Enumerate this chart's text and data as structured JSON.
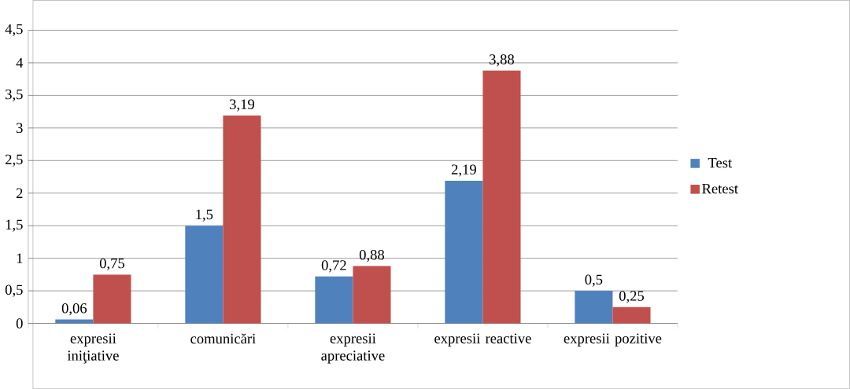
{
  "chart_data": {
    "type": "bar",
    "categories": [
      "expresii iniţiative",
      "comunicări",
      "expresii apreciative",
      "expresii reactive",
      "expresii pozitive"
    ],
    "series": [
      {
        "name": "Test",
        "color": "#4f81bd",
        "values": [
          0.06,
          1.5,
          0.72,
          2.19,
          0.5
        ],
        "value_labels": [
          "0,06",
          "1,5",
          "0,72",
          "2,19",
          "0,5"
        ]
      },
      {
        "name": "Retest",
        "color": "#c0504d",
        "values": [
          0.75,
          3.19,
          0.88,
          3.88,
          0.25
        ],
        "value_labels": [
          "0,75",
          "3,19",
          "0,88",
          "3,88",
          "0,25"
        ]
      }
    ],
    "ylim": [
      0,
      4.5
    ],
    "yticks": [
      0,
      {
        "value": 0.5,
        "label": "0,5"
      },
      1,
      {
        "value": 1.5,
        "label": "1,5"
      },
      2,
      {
        "value": 2.5,
        "label": "2,5"
      },
      3,
      {
        "value": 3.5,
        "label": "3,5"
      },
      4,
      {
        "value": 4.5,
        "label": "4,5"
      }
    ],
    "grid": "y",
    "legend": "right"
  }
}
